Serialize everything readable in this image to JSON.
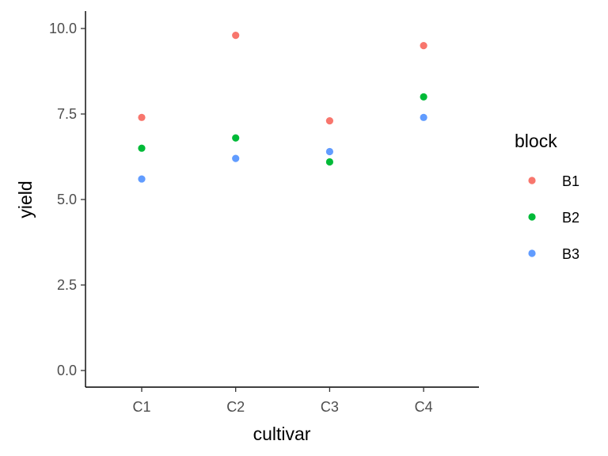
{
  "chart_data": {
    "type": "scatter",
    "xlabel": "cultivar",
    "ylabel": "yield",
    "categories": [
      "C1",
      "C2",
      "C3",
      "C4"
    ],
    "ylim": [
      0,
      10
    ],
    "yticks": [
      "0.0",
      "2.5",
      "5.0",
      "7.5",
      "10.0"
    ],
    "ytick_values": [
      0,
      2.5,
      5,
      7.5,
      10
    ],
    "grid": false,
    "legend": {
      "title": "block",
      "placement": "right"
    },
    "series": [
      {
        "name": "B1",
        "color": "#F8766D",
        "values": [
          7.4,
          9.8,
          7.3,
          9.5
        ]
      },
      {
        "name": "B2",
        "color": "#00BA38",
        "values": [
          6.5,
          6.8,
          6.1,
          8.0
        ]
      },
      {
        "name": "B3",
        "color": "#619CFF",
        "values": [
          5.6,
          6.2,
          6.4,
          7.4
        ]
      }
    ]
  }
}
